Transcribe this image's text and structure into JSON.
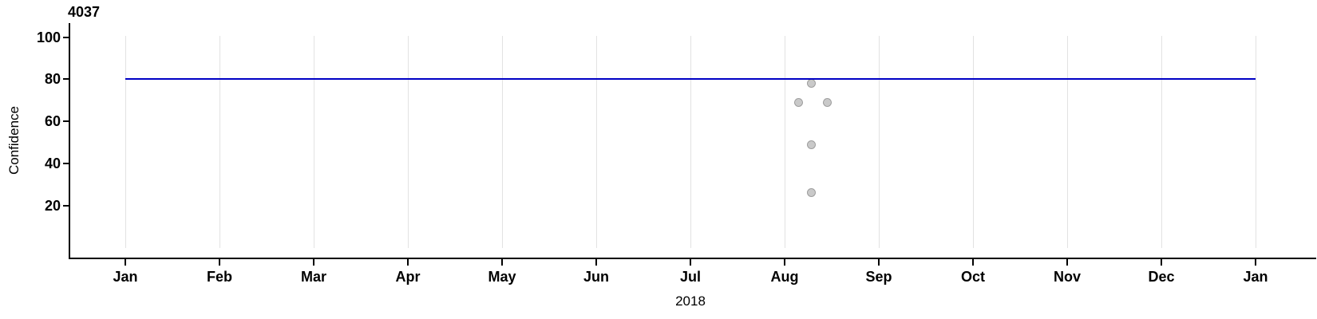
{
  "chart_data": {
    "type": "scatter",
    "title": "4037",
    "xlabel": "2018",
    "ylabel": "Confidence",
    "x_tick_labels": [
      "Jan",
      "Feb",
      "Mar",
      "Apr",
      "May",
      "Jun",
      "Jul",
      "Aug",
      "Sep",
      "Oct",
      "Nov",
      "Dec",
      "Jan"
    ],
    "y_ticks": [
      100,
      80,
      60,
      40,
      20
    ],
    "ylim": [
      0,
      105
    ],
    "x_range": "Jan 2018 to Jan 2019",
    "grid": "vertical-month-gridlines-only",
    "legend": "none",
    "reference_line": {
      "y": 80,
      "x_start_month": 0,
      "x_end_month": 12,
      "color": "#0000c4",
      "thickness_px": 2
    },
    "points": [
      {
        "month_frac": 7.15,
        "date_approx": "2018-08-06",
        "confidence": 69
      },
      {
        "month_frac": 7.28,
        "date_approx": "2018-08-10",
        "confidence": 78
      },
      {
        "month_frac": 7.28,
        "date_approx": "2018-08-10",
        "confidence": 49
      },
      {
        "month_frac": 7.28,
        "date_approx": "2018-08-10",
        "confidence": 26
      },
      {
        "month_frac": 7.45,
        "date_approx": "2018-08-15",
        "confidence": 69
      }
    ],
    "point_style": {
      "fill": "#c9c9c9",
      "stroke": "#9e9e9e",
      "radius_px": 5.5
    },
    "colors": {
      "axis": "#000000",
      "gridline": "#e2e2e2",
      "text": "#000000",
      "background": "#ffffff"
    }
  }
}
